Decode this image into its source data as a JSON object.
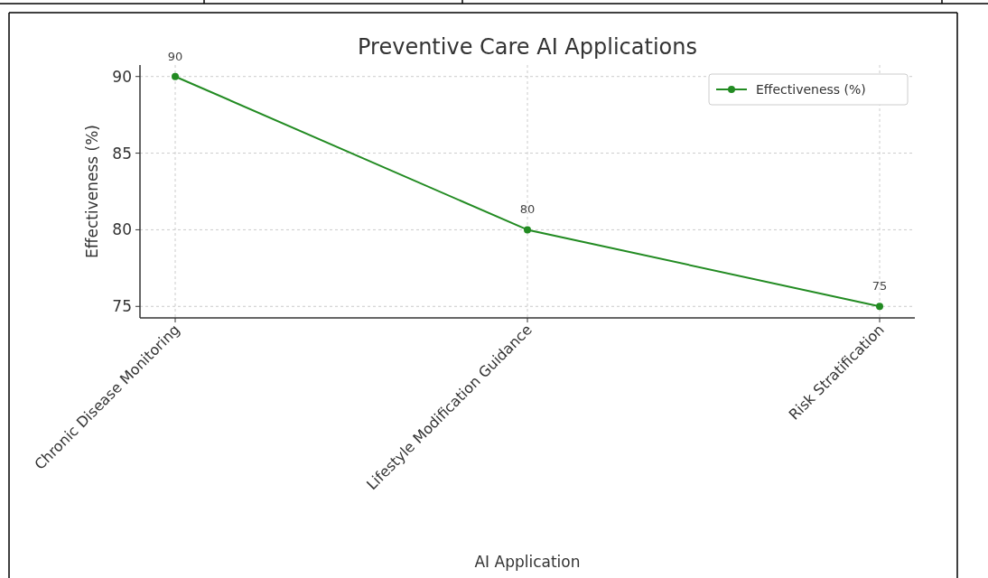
{
  "chart_data": {
    "type": "line",
    "title": "Preventive Care AI Applications",
    "xlabel": "AI Application",
    "ylabel": "Effectiveness (%)",
    "categories": [
      "Chronic Disease Monitoring",
      "Lifestyle Modification Guidance",
      "Risk Stratification"
    ],
    "series": [
      {
        "name": "Effectiveness (%)",
        "color": "#228b22",
        "values": [
          90,
          80,
          75
        ]
      }
    ],
    "ylim": [
      74.25,
      90.75
    ],
    "yticks": [
      75,
      80,
      85,
      90
    ],
    "grid": true,
    "legend": "top right",
    "marker": "circle",
    "line_style": "solid",
    "data_labels": true
  }
}
